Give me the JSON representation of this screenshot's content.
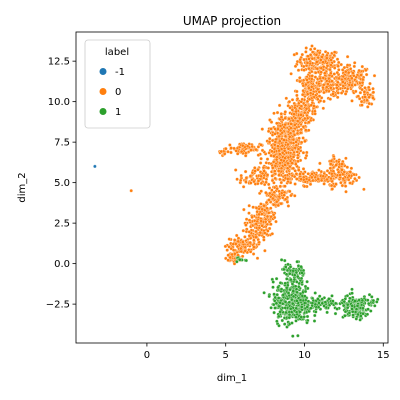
{
  "chart_data": {
    "type": "scatter",
    "title": "UMAP projection",
    "xlabel": "dim_1",
    "ylabel": "dim_2",
    "xlim": [
      -4.5,
      15.3
    ],
    "ylim": [
      -4.9,
      14.3
    ],
    "xticks": [
      0,
      5,
      10,
      15
    ],
    "yticks": [
      -2.5,
      0.0,
      2.5,
      5.0,
      7.5,
      10.0,
      12.5
    ],
    "xtick_labels": [
      "0",
      "5",
      "10",
      "15"
    ],
    "ytick_labels": [
      "−2.5",
      "0.0",
      "2.5",
      "5.0",
      "7.5",
      "10.0",
      "12.5"
    ],
    "grid": false,
    "legend": {
      "title": "label",
      "position": "top-left",
      "entries": [
        {
          "label": "-1",
          "color": "#1f77b4"
        },
        {
          "label": "0",
          "color": "#ff7f0e"
        },
        {
          "label": "1",
          "color": "#2ca02c"
        }
      ]
    },
    "series": [
      {
        "name": "-1",
        "color": "#1f77b4",
        "points": [
          [
            -3.3,
            6.0
          ]
        ]
      },
      {
        "name": "0",
        "color": "#ff7f0e",
        "points": [
          [
            -1.0,
            4.5
          ]
        ],
        "clusters": [
          {
            "cx": 10.9,
            "cy": 12.5,
            "sx": 0.9,
            "sy": 0.5,
            "n": 160
          },
          {
            "cx": 11.5,
            "cy": 11.2,
            "sx": 0.9,
            "sy": 0.6,
            "n": 160
          },
          {
            "cx": 13.0,
            "cy": 11.3,
            "sx": 0.8,
            "sy": 0.6,
            "n": 150
          },
          {
            "cx": 14.0,
            "cy": 10.4,
            "sx": 0.35,
            "sy": 0.4,
            "n": 50
          },
          {
            "cx": 10.3,
            "cy": 10.6,
            "sx": 0.5,
            "sy": 0.8,
            "n": 120
          },
          {
            "cx": 9.6,
            "cy": 9.2,
            "sx": 0.6,
            "sy": 0.7,
            "n": 160
          },
          {
            "cx": 8.9,
            "cy": 8.1,
            "sx": 0.7,
            "sy": 0.7,
            "n": 230
          },
          {
            "cx": 8.7,
            "cy": 7.0,
            "sx": 0.7,
            "sy": 0.6,
            "n": 230
          },
          {
            "cx": 8.6,
            "cy": 6.0,
            "sx": 0.6,
            "sy": 0.5,
            "n": 170
          },
          {
            "cx": 6.2,
            "cy": 7.1,
            "sx": 0.7,
            "sy": 0.25,
            "n": 70
          },
          {
            "cx": 4.8,
            "cy": 6.9,
            "sx": 0.25,
            "sy": 0.2,
            "n": 15
          },
          {
            "cx": 6.8,
            "cy": 5.3,
            "sx": 0.6,
            "sy": 0.4,
            "n": 70
          },
          {
            "cx": 10.5,
            "cy": 5.3,
            "sx": 1.3,
            "sy": 0.3,
            "n": 150
          },
          {
            "cx": 12.5,
            "cy": 5.4,
            "sx": 0.6,
            "sy": 0.5,
            "n": 90
          },
          {
            "cx": 12.0,
            "cy": 6.2,
            "sx": 0.35,
            "sy": 0.4,
            "n": 40
          },
          {
            "cx": 8.2,
            "cy": 4.2,
            "sx": 0.6,
            "sy": 0.5,
            "n": 100
          },
          {
            "cx": 7.4,
            "cy": 3.0,
            "sx": 0.5,
            "sy": 0.5,
            "n": 100
          },
          {
            "cx": 6.9,
            "cy": 2.0,
            "sx": 0.5,
            "sy": 0.5,
            "n": 90
          },
          {
            "cx": 6.0,
            "cy": 1.1,
            "sx": 0.6,
            "sy": 0.4,
            "n": 100
          },
          {
            "cx": 5.4,
            "cy": 0.4,
            "sx": 0.3,
            "sy": 0.3,
            "n": 35
          }
        ]
      },
      {
        "name": "1",
        "color": "#2ca02c",
        "clusters": [
          {
            "cx": 9.2,
            "cy": -2.4,
            "sx": 0.8,
            "sy": 0.9,
            "n": 380
          },
          {
            "cx": 9.3,
            "cy": -0.6,
            "sx": 0.5,
            "sy": 0.5,
            "n": 70
          },
          {
            "cx": 11.2,
            "cy": -2.5,
            "sx": 0.9,
            "sy": 0.25,
            "n": 90
          },
          {
            "cx": 13.2,
            "cy": -2.7,
            "sx": 0.6,
            "sy": 0.45,
            "n": 190
          },
          {
            "cx": 14.2,
            "cy": -2.3,
            "sx": 0.2,
            "sy": 0.2,
            "n": 15
          },
          {
            "cx": 5.8,
            "cy": 0.25,
            "sx": 0.3,
            "sy": 0.08,
            "n": 10
          }
        ]
      }
    ]
  }
}
